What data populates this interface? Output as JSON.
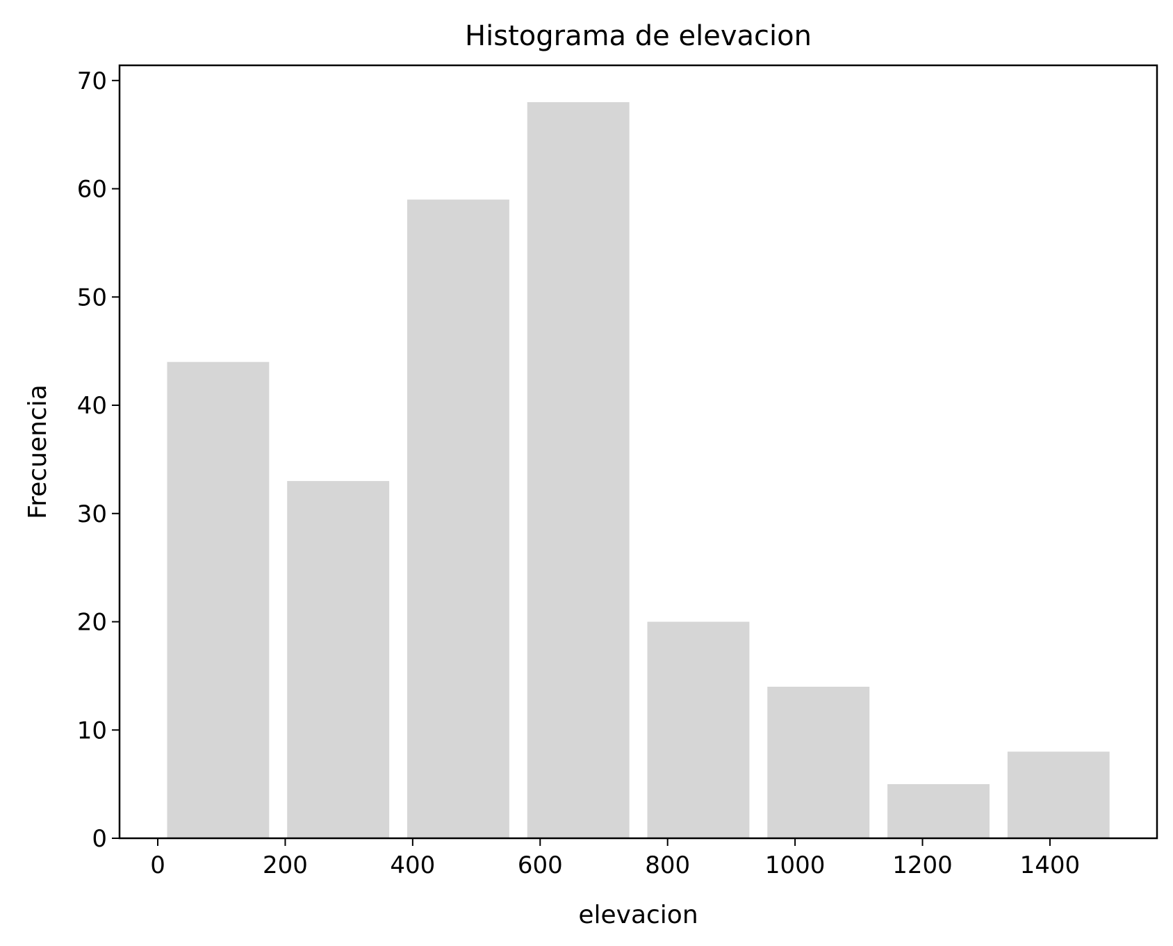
{
  "chart_data": {
    "type": "bar",
    "title": "Histograma de elevacion",
    "xlabel": "elevacion",
    "ylabel": "Frecuencia",
    "bins": [
      {
        "start": 14.7,
        "end": 174.8,
        "count": 44
      },
      {
        "start": 203.0,
        "end": 363.2,
        "count": 33
      },
      {
        "start": 391.4,
        "end": 551.6,
        "count": 59
      },
      {
        "start": 579.8,
        "end": 740.0,
        "count": 68
      },
      {
        "start": 768.2,
        "end": 928.4,
        "count": 20
      },
      {
        "start": 956.6,
        "end": 1116.8,
        "count": 14
      },
      {
        "start": 1145.0,
        "end": 1305.2,
        "count": 5
      },
      {
        "start": 1333.4,
        "end": 1493.5,
        "count": 8
      }
    ],
    "values": [
      44,
      33,
      59,
      68,
      20,
      14,
      5,
      8
    ],
    "xlim": [
      -60,
      1568
    ],
    "ylim": [
      0,
      71.4
    ],
    "xticks": [
      0,
      200,
      400,
      600,
      800,
      1000,
      1200,
      1400
    ],
    "yticks": [
      0,
      10,
      20,
      30,
      40,
      50,
      60,
      70
    ],
    "bar_color": "#d6d6d6",
    "grid": false,
    "legend": "none"
  }
}
